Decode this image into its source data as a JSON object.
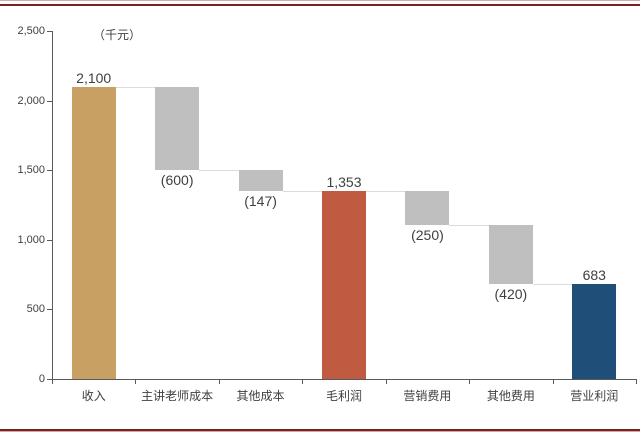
{
  "frame": {
    "light_color": "#D9A7A7",
    "dark_color": "#7B2022"
  },
  "chart_data": {
    "type": "bar",
    "subtype": "waterfall",
    "unit_label": "（千元）",
    "y_axis": {
      "min": 0,
      "max": 2500,
      "step": 500,
      "tick_labels": [
        "0",
        "500",
        "1,000",
        "1,500",
        "2,000",
        "2,500"
      ]
    },
    "categories": [
      "收入",
      "主讲老师成本",
      "其他成本",
      "毛利润",
      "营销费用",
      "其他费用",
      "营业利润"
    ],
    "steps": [
      {
        "name": "revenue",
        "category": "收入",
        "start": 0,
        "end": 2100,
        "value": 2100,
        "display": "2,100",
        "color": "increase",
        "label_position": "above"
      },
      {
        "name": "teacher-cost",
        "category": "主讲老师成本",
        "start": 2100,
        "end": 1500,
        "value": -600,
        "display": "(600)",
        "color": "decrease",
        "label_position": "below"
      },
      {
        "name": "other-cost",
        "category": "其他成本",
        "start": 1500,
        "end": 1353,
        "value": -147,
        "display": "(147)",
        "color": "decrease",
        "label_position": "below"
      },
      {
        "name": "gross-profit",
        "category": "毛利润",
        "start": 0,
        "end": 1353,
        "value": 1353,
        "display": "1,353",
        "color": "subtotal",
        "label_position": "above"
      },
      {
        "name": "marketing-expense",
        "category": "营销费用",
        "start": 1353,
        "end": 1103,
        "value": -250,
        "display": "(250)",
        "color": "decrease",
        "label_position": "below"
      },
      {
        "name": "other-expense",
        "category": "其他费用",
        "start": 1103,
        "end": 683,
        "value": -420,
        "display": "(420)",
        "color": "decrease",
        "label_position": "below"
      },
      {
        "name": "operating-profit",
        "category": "营业利润",
        "start": 0,
        "end": 683,
        "value": 683,
        "display": "683",
        "color": "result",
        "label_position": "above"
      }
    ],
    "colors": {
      "increase": "#C8A064",
      "decrease": "#BFBFBF",
      "subtotal": "#C05B41",
      "result": "#1F4E79",
      "axis": "#595959",
      "text": "#3F3F3F",
      "connector": "#DCDCDC"
    },
    "grid": false,
    "legend": false
  }
}
